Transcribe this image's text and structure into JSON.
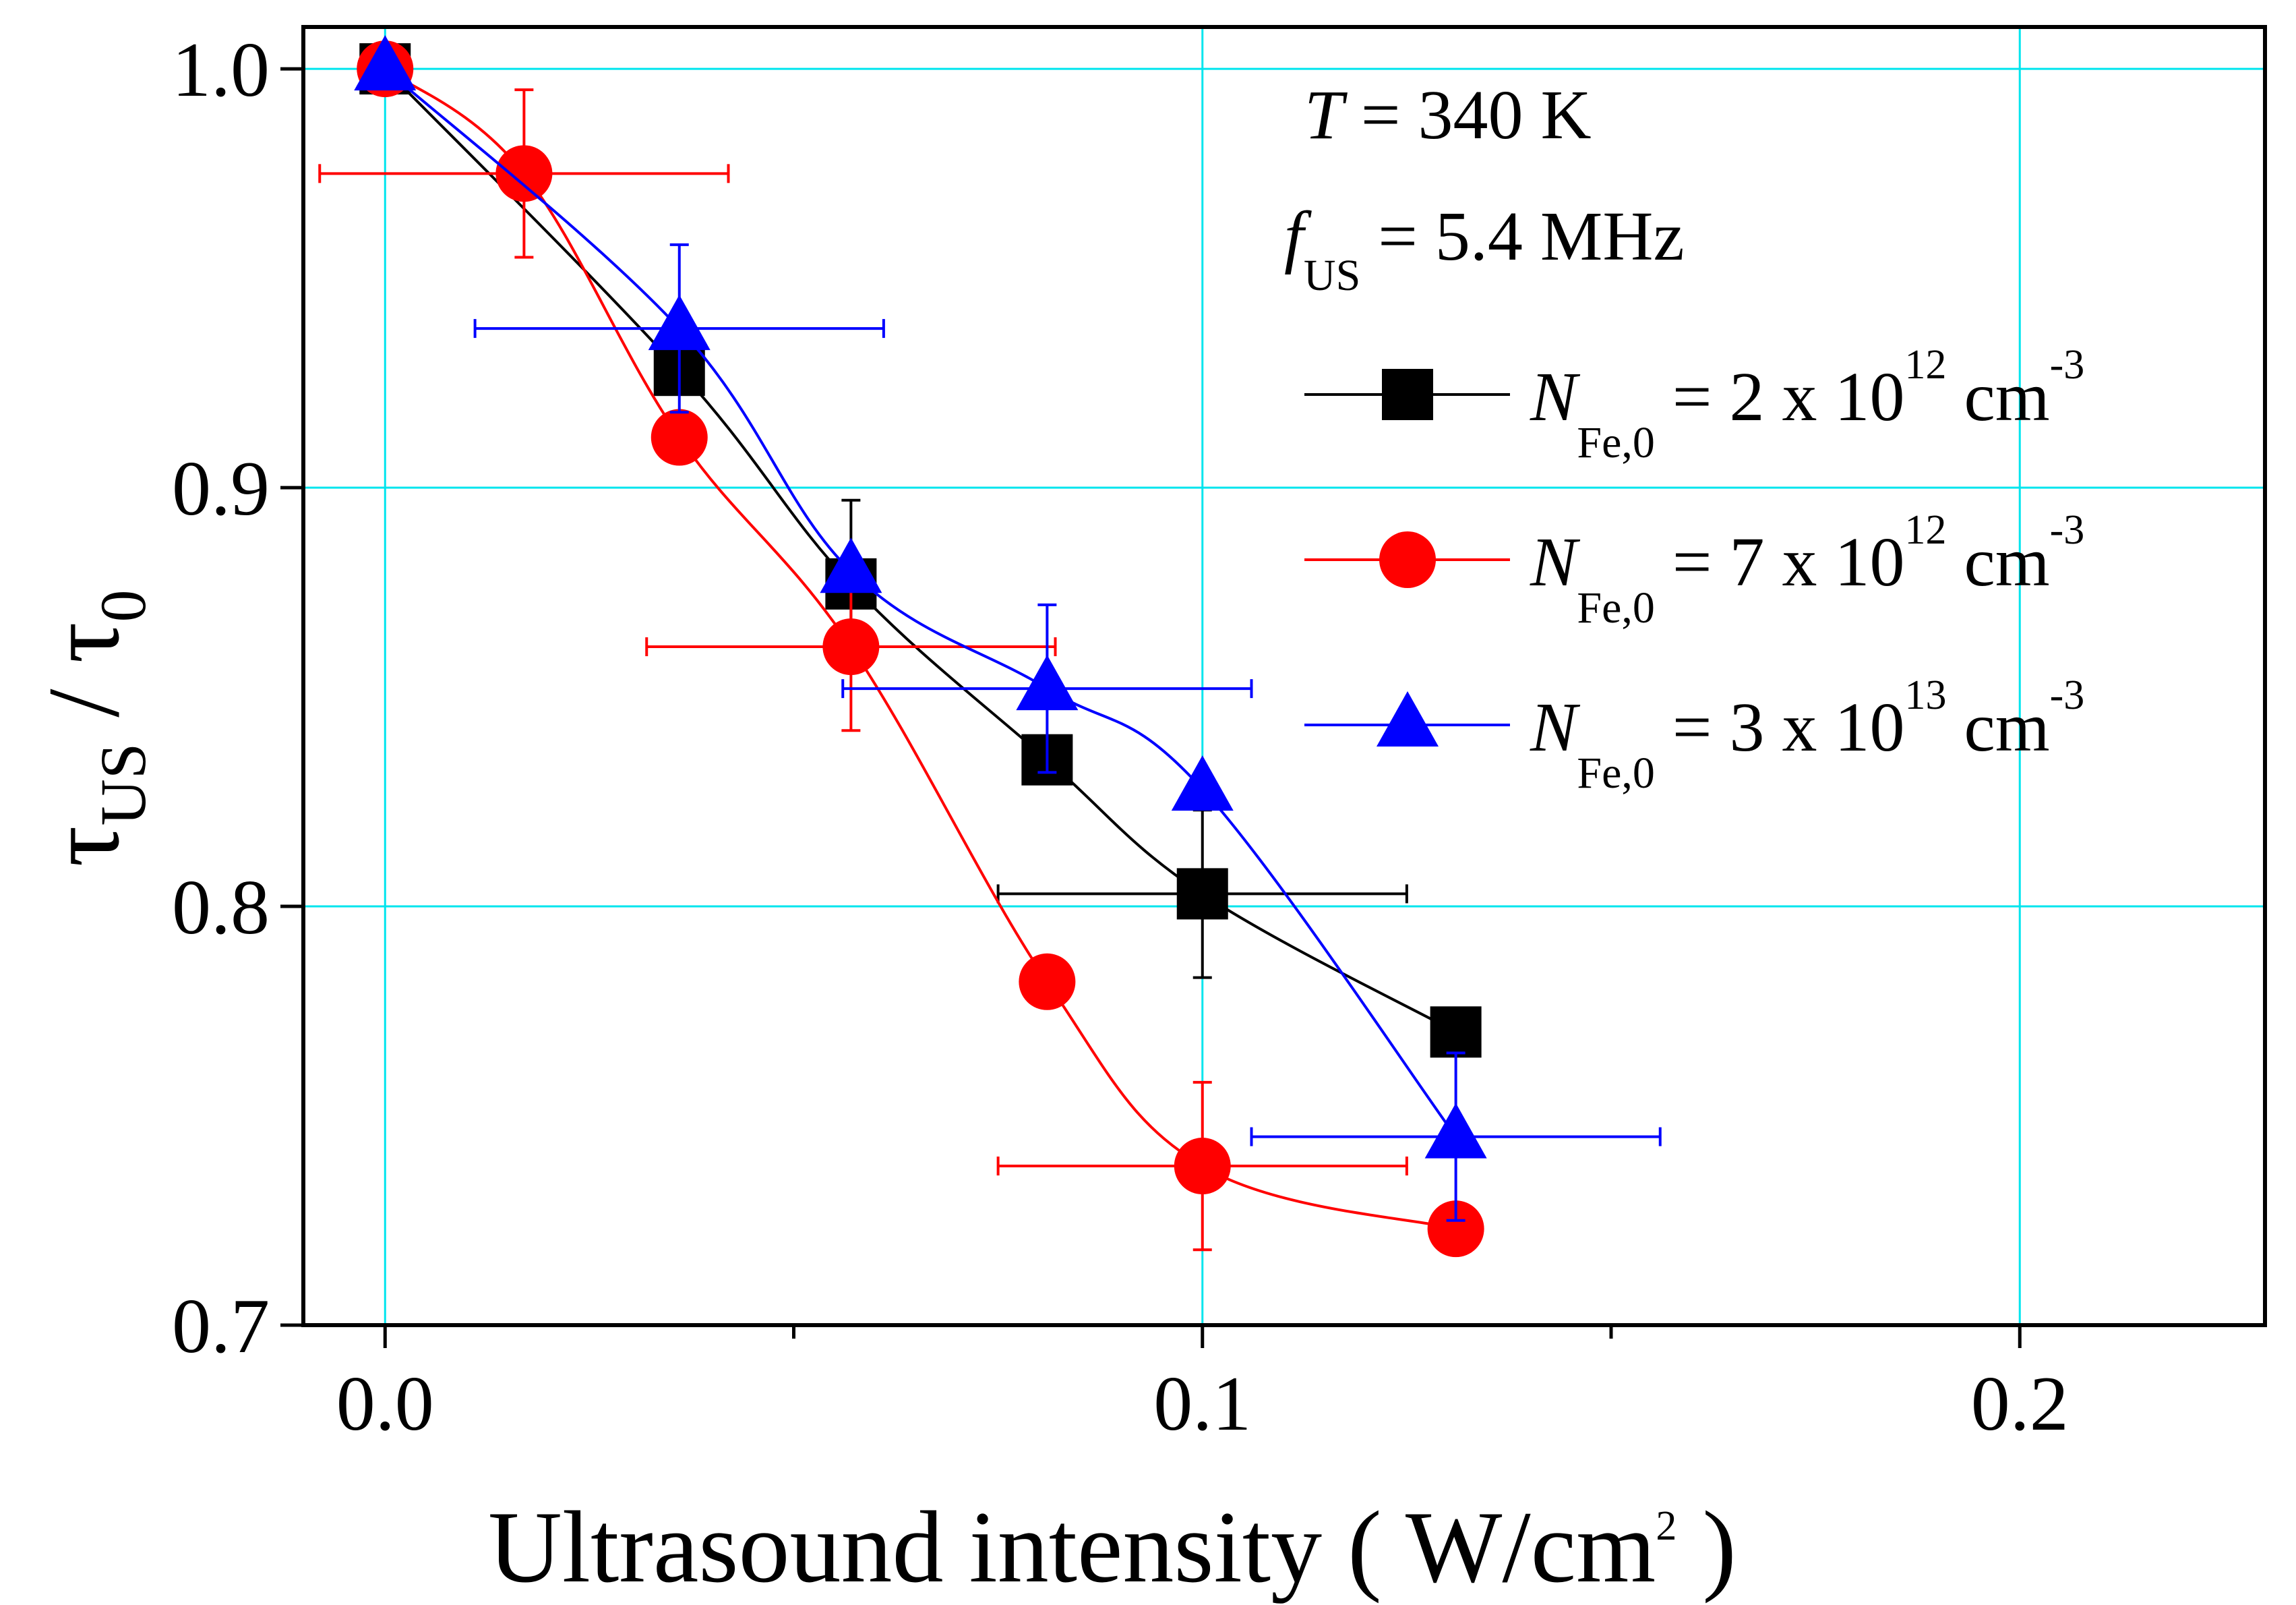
{
  "chart_data": {
    "type": "line",
    "xlabel": "Ultrasound intensity ( W/cm",
    "xlabel_sup": "2",
    "xlabel_end": " )",
    "ylabel": {
      "main": "τ",
      "sub": "US",
      "sep": " / ",
      "main2": "τ",
      "sub2": "0"
    },
    "xlim": [
      -0.01,
      0.23
    ],
    "ylim": [
      0.7,
      1.01
    ],
    "x_ticks": [
      0.0,
      0.1,
      0.2
    ],
    "x_tick_labels": [
      "0.0",
      "0.1",
      "0.2"
    ],
    "x_minor_ticks": [
      0.05,
      0.15
    ],
    "y_ticks": [
      0.7,
      0.8,
      0.9,
      1.0
    ],
    "y_tick_labels": [
      "0.7",
      "0.8",
      "0.9",
      "1.0"
    ],
    "grid": true,
    "grid_color": "#00E5EE",
    "annotations": [
      {
        "var": "T",
        "sub": "",
        "text": " = 340 K"
      },
      {
        "var": "f",
        "sub": "US",
        "text": " = 5.4 MHz"
      }
    ],
    "legend_position": "top-right",
    "series": [
      {
        "legend_var": "N",
        "legend_sub": "Fe,0",
        "legend_text": " = 2 x 10",
        "legend_sup": "12",
        "legend_unit": " cm",
        "legend_unit_sup": "-3",
        "color": "#000000",
        "marker": "square",
        "x": [
          0.0,
          0.036,
          0.057,
          0.081,
          0.1,
          0.131
        ],
        "y": [
          1.0,
          0.928,
          0.877,
          0.835,
          0.803,
          0.77
        ],
        "xerr": [
          null,
          null,
          null,
          null,
          0.025,
          null
        ],
        "yerr": [
          null,
          null,
          0.02,
          null,
          0.02,
          null
        ]
      },
      {
        "legend_var": "N",
        "legend_sub": "Fe,0",
        "legend_text": " = 7 x 10",
        "legend_sup": "12",
        "legend_unit": " cm",
        "legend_unit_sup": "-3",
        "color": "#FF0000",
        "marker": "circle",
        "x": [
          0.0,
          0.017,
          0.036,
          0.057,
          0.081,
          0.1,
          0.131
        ],
        "y": [
          1.0,
          0.975,
          0.912,
          0.862,
          0.782,
          0.738,
          0.723
        ],
        "xerr": [
          null,
          0.025,
          null,
          0.025,
          null,
          0.025,
          null
        ],
        "yerr": [
          null,
          0.02,
          null,
          0.02,
          null,
          0.02,
          null
        ]
      },
      {
        "legend_var": "N",
        "legend_sub": "Fe,0",
        "legend_text": " = 3 x 10",
        "legend_sup": "13",
        "legend_unit": " cm",
        "legend_unit_sup": "-3",
        "color": "#0000FF",
        "marker": "triangle",
        "x": [
          0.0,
          0.036,
          0.057,
          0.081,
          0.1,
          0.131
        ],
        "y": [
          1.0,
          0.938,
          0.88,
          0.852,
          0.828,
          0.745
        ],
        "xerr": [
          null,
          0.025,
          null,
          0.025,
          null,
          0.025
        ],
        "yerr": [
          null,
          0.02,
          null,
          0.02,
          null,
          0.02
        ]
      }
    ]
  }
}
